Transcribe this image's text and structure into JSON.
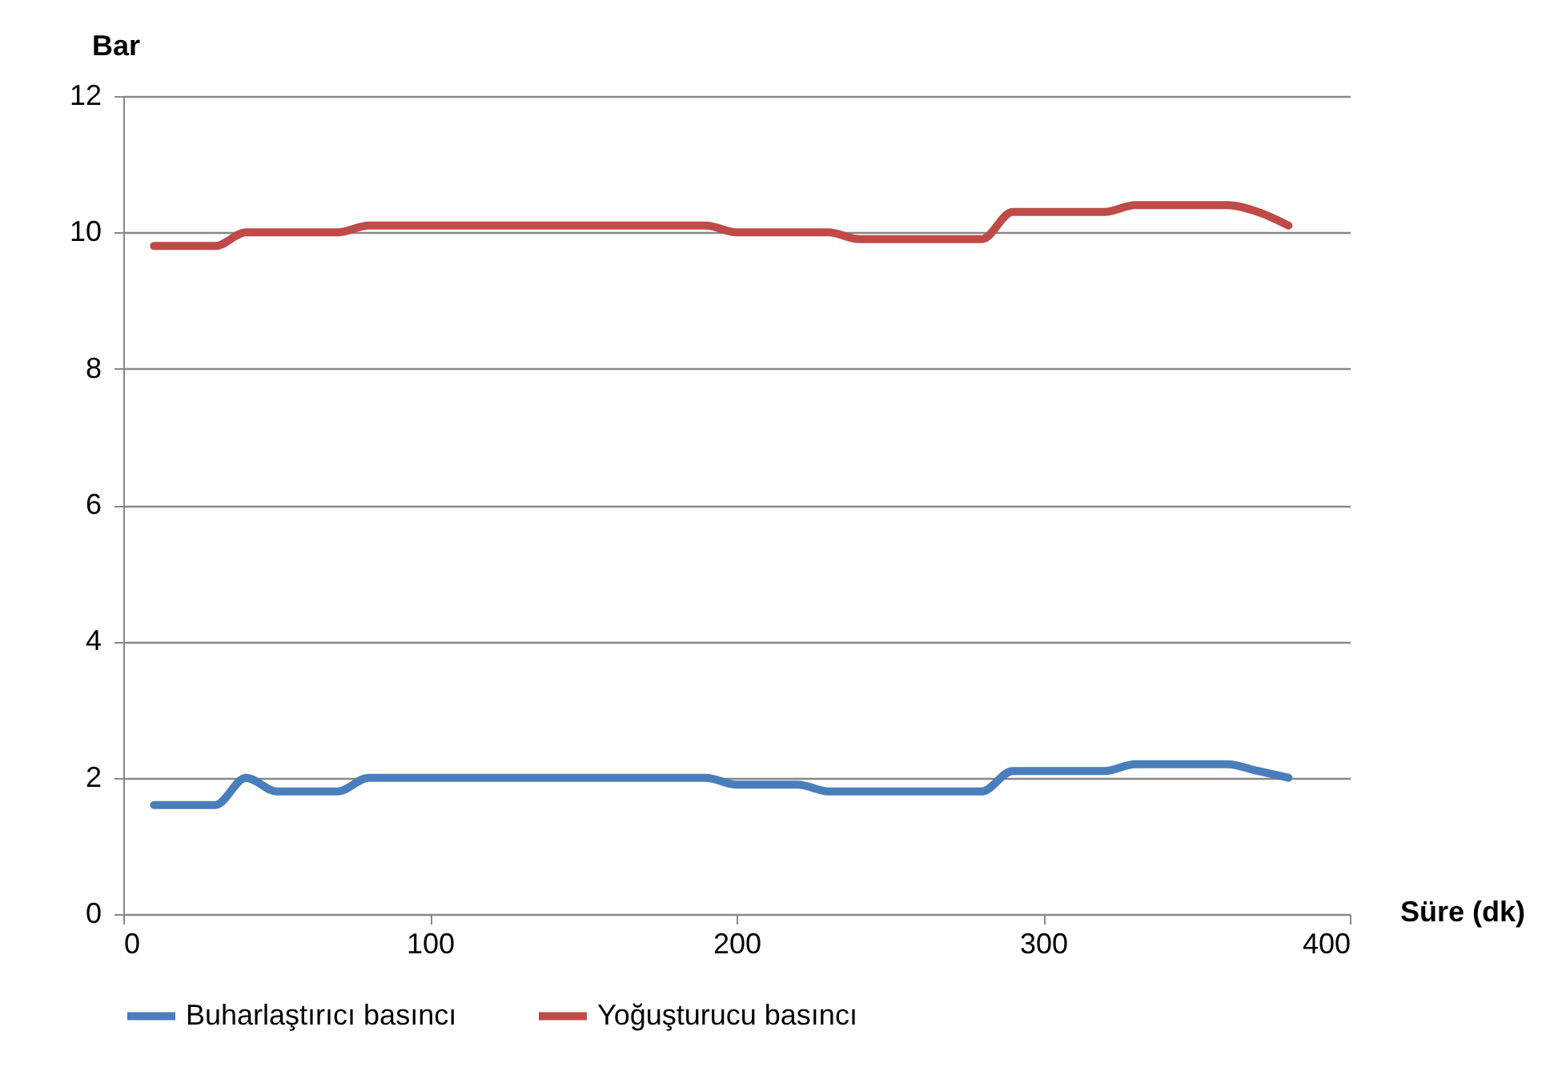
{
  "chart_data": {
    "type": "line",
    "xlabel": "Süre (dk)",
    "ylabel": "Bar",
    "x": [
      10,
      20,
      30,
      40,
      50,
      60,
      70,
      80,
      90,
      100,
      110,
      120,
      130,
      140,
      150,
      160,
      170,
      180,
      190,
      200,
      210,
      220,
      230,
      240,
      250,
      260,
      270,
      280,
      290,
      300,
      310,
      320,
      330,
      340,
      350,
      360,
      370,
      380
    ],
    "series": [
      {
        "name": "Buharlaştırıcı basıncı",
        "color": "#4a7ebb",
        "values": [
          1.6,
          1.6,
          1.6,
          2.0,
          1.8,
          1.8,
          1.8,
          2.0,
          2.0,
          2.0,
          2.0,
          2.0,
          2.0,
          2.0,
          2.0,
          2.0,
          2.0,
          2.0,
          2.0,
          1.9,
          1.9,
          1.9,
          1.8,
          1.8,
          1.8,
          1.8,
          1.8,
          1.8,
          2.1,
          2.1,
          2.1,
          2.1,
          2.2,
          2.2,
          2.2,
          2.2,
          2.1,
          2.0
        ]
      },
      {
        "name": "Yoğuşturucu basıncı",
        "color": "#be4b48",
        "values": [
          9.8,
          9.8,
          9.8,
          10.0,
          10.0,
          10.0,
          10.0,
          10.1,
          10.1,
          10.1,
          10.1,
          10.1,
          10.1,
          10.1,
          10.1,
          10.1,
          10.1,
          10.1,
          10.1,
          10.0,
          10.0,
          10.0,
          10.0,
          9.9,
          9.9,
          9.9,
          9.9,
          9.9,
          10.3,
          10.3,
          10.3,
          10.3,
          10.4,
          10.4,
          10.4,
          10.4,
          10.3,
          10.1
        ]
      }
    ],
    "xlim": [
      0,
      400
    ],
    "xticks": [
      0,
      100,
      200,
      300,
      400
    ],
    "ylim": [
      0,
      12
    ],
    "yticks": [
      0,
      2,
      4,
      6,
      8,
      10,
      12
    ],
    "grid": "y",
    "legend": "bottom",
    "line_style": "solid"
  }
}
